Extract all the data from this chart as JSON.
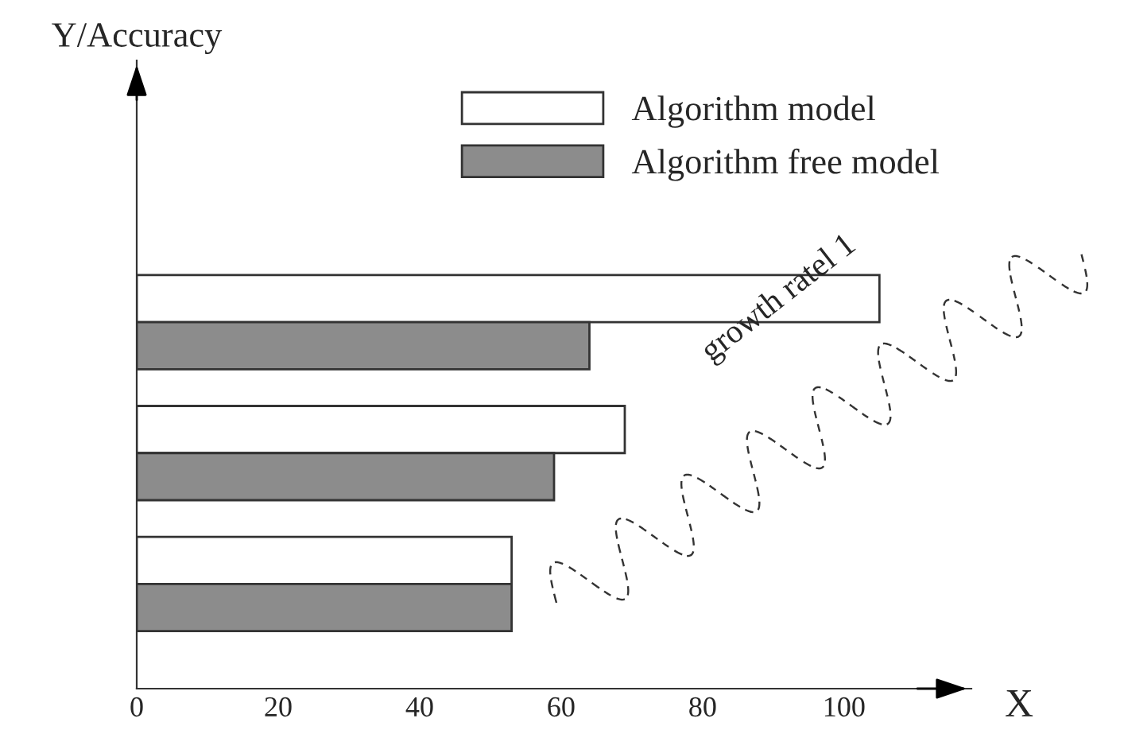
{
  "chart_data": {
    "type": "bar",
    "orientation": "horizontal",
    "xlabel": "X",
    "categories": [
      null,
      null,
      null
    ],
    "series": [
      {
        "name": "Algorithm model",
        "color": "#ffffff",
        "values": [
          105,
          69,
          53
        ]
      },
      {
        "name": "Algorithm free model",
        "color": "#8c8c8c",
        "values": [
          64,
          59,
          53
        ]
      }
    ],
    "xlim": [
      0,
      118
    ],
    "xticks": [
      0,
      20,
      40,
      60,
      80,
      100
    ],
    "tick_labels": "x",
    "grid": false,
    "legend": "top right",
    "annotations": [
      "growth ratel 1",
      "Y/Accuracy"
    ]
  }
}
